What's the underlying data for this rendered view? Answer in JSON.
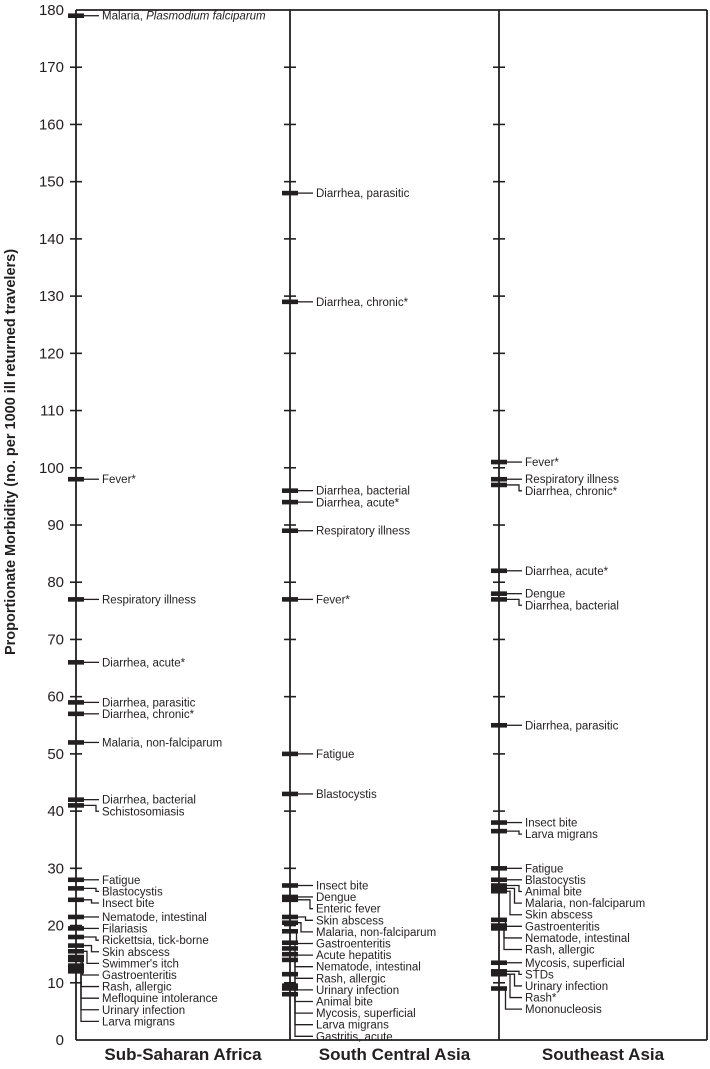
{
  "chart_data": {
    "type": "scatter",
    "title": "",
    "ylabel": "Proportionate Morbidity (no. per 1000 ill returned travelers)",
    "xlabel": "",
    "ylim": [
      0,
      180
    ],
    "ytick_step": 10,
    "grid": false,
    "legend": "none",
    "marker": "horizontal-bar-tick-with-leader-line-to-label",
    "colors": {
      "ink": "#231f20",
      "background": "#ffffff"
    },
    "panels": [
      {
        "region": "Sub-Saharan Africa",
        "points": [
          {
            "label": "Malaria, Plasmodium falciparum",
            "italic": "Plasmodium falciparum",
            "value": 179
          },
          {
            "label": "Fever*",
            "value": 98
          },
          {
            "label": "Respiratory illness",
            "value": 77
          },
          {
            "label": "Diarrhea, acute*",
            "value": 66
          },
          {
            "label": "Diarrhea, parasitic",
            "value": 59
          },
          {
            "label": "Diarrhea, chronic*",
            "value": 57
          },
          {
            "label": "Malaria, non-falciparum",
            "value": 52
          },
          {
            "label": "Diarrhea, bacterial",
            "value": 42
          },
          {
            "label": "Schistosomiasis",
            "value": 41
          },
          {
            "label": "Fatigue",
            "value": 28
          },
          {
            "label": "Blastocystis",
            "value": 26.5
          },
          {
            "label": "Insect bite",
            "value": 24.5
          },
          {
            "label": "Nematode, intestinal",
            "value": 21.5
          },
          {
            "label": "Filariasis",
            "value": 19.5
          },
          {
            "label": "Rickettsia, tick-borne",
            "value": 18
          },
          {
            "label": "Skin abscess",
            "value": 16.5
          },
          {
            "label": "Swimmer's itch",
            "value": 15.5
          },
          {
            "label": "Gastroenteritis",
            "value": 14.5
          },
          {
            "label": "Rash, allergic",
            "value": 14
          },
          {
            "label": "Mefloquine intolerance",
            "value": 13
          },
          {
            "label": "Urinary infection",
            "value": 12.5
          },
          {
            "label": "Larva migrans",
            "value": 12
          }
        ]
      },
      {
        "region": "South Central Asia",
        "points": [
          {
            "label": "Diarrhea, parasitic",
            "value": 148
          },
          {
            "label": "Diarrhea, chronic*",
            "value": 129
          },
          {
            "label": "Diarrhea, bacterial",
            "value": 96
          },
          {
            "label": "Diarrhea, acute*",
            "value": 94
          },
          {
            "label": "Respiratory illness",
            "value": 89
          },
          {
            "label": "Fever*",
            "value": 77
          },
          {
            "label": "Fatigue",
            "value": 50
          },
          {
            "label": "Blastocystis",
            "value": 43
          },
          {
            "label": "Insect bite",
            "value": 27
          },
          {
            "label": "Dengue",
            "value": 25
          },
          {
            "label": "Enteric fever",
            "value": 24.5
          },
          {
            "label": "Skin abscess",
            "value": 21.5
          },
          {
            "label": "Malaria, non-falciparum",
            "value": 20.5
          },
          {
            "label": "Gastroenteritis",
            "value": 19
          },
          {
            "label": "Acute hepatitis",
            "value": 17
          },
          {
            "label": "Nematode, intestinal",
            "value": 16
          },
          {
            "label": "Rash, allergic",
            "value": 15
          },
          {
            "label": "Urinary infection",
            "value": 14
          },
          {
            "label": "Animal bite",
            "value": 11.5
          },
          {
            "label": "Mycosis, superficial",
            "value": 9.5
          },
          {
            "label": "Larva migrans",
            "value": 9
          },
          {
            "label": "Gastritis, acute",
            "value": 8
          }
        ]
      },
      {
        "region": "Southeast Asia",
        "points": [
          {
            "label": "Fever*",
            "value": 101
          },
          {
            "label": "Respiratory illness",
            "value": 98
          },
          {
            "label": "Diarrhea, chronic*",
            "value": 97
          },
          {
            "label": "Diarrhea, acute*",
            "value": 82
          },
          {
            "label": "Dengue",
            "value": 78
          },
          {
            "label": "Diarrhea, bacterial",
            "value": 77
          },
          {
            "label": "Diarrhea, parasitic",
            "value": 55
          },
          {
            "label": "Insect bite",
            "value": 38
          },
          {
            "label": "Larva migrans",
            "value": 36.5
          },
          {
            "label": "Fatigue",
            "value": 30
          },
          {
            "label": "Blastocystis",
            "value": 28
          },
          {
            "label": "Animal bite",
            "value": 27
          },
          {
            "label": "Malaria, non-falciparum",
            "value": 26.5
          },
          {
            "label": "Skin abscess",
            "value": 26
          },
          {
            "label": "Gastroenteritis",
            "value": 21
          },
          {
            "label": "Nematode, intestinal",
            "value": 20
          },
          {
            "label": "Rash, allergic",
            "value": 19.5
          },
          {
            "label": "Mycosis, superficial",
            "value": 13.5
          },
          {
            "label": "STDs",
            "value": 12
          },
          {
            "label": "Urinary infection",
            "value": 11.5
          },
          {
            "label": "Rash*",
            "value": 11.5
          },
          {
            "label": "Mononucleosis",
            "value": 9
          }
        ]
      }
    ]
  }
}
